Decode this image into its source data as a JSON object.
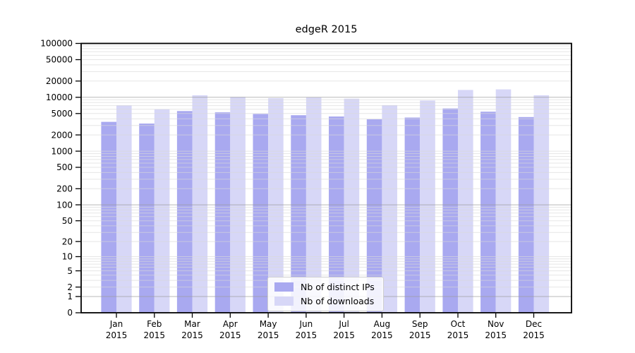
{
  "title": "edgeR 2015",
  "chart_data": {
    "type": "bar",
    "title": "edgeR 2015",
    "categories": [
      "Jan 2015",
      "Feb 2015",
      "Mar 2015",
      "Apr 2015",
      "May 2015",
      "Jun 2015",
      "Jul 2015",
      "Aug 2015",
      "Sep 2015",
      "Oct 2015",
      "Nov 2015",
      "Dec 2015"
    ],
    "series": [
      {
        "name": "Nb of distinct IPs",
        "color": "#a9a9f0",
        "values": [
          3500,
          3250,
          5550,
          5250,
          4900,
          4650,
          4400,
          3900,
          4200,
          6200,
          5400,
          4300
        ]
      },
      {
        "name": "Nb of downloads",
        "color": "#d7d7f7",
        "values": [
          7100,
          6000,
          10900,
          10150,
          9600,
          9900,
          9400,
          7150,
          8700,
          13700,
          14000,
          10900
        ]
      }
    ],
    "xlabel": "",
    "ylabel": "",
    "yscale": "log1p",
    "ylim": [
      0,
      100000
    ],
    "ytick_values": [
      0,
      1,
      2,
      5,
      10,
      20,
      50,
      100,
      200,
      500,
      1000,
      2000,
      5000,
      10000,
      20000,
      50000,
      100000
    ],
    "major_grid_values": [
      1,
      100,
      10000
    ],
    "grid": "on",
    "legend_position": "inside lower center",
    "colors": {
      "spine": "#000000",
      "minor_grid": "#d9d9d9",
      "major_grid": "#9b9b9b",
      "background": "#ffffff"
    }
  }
}
